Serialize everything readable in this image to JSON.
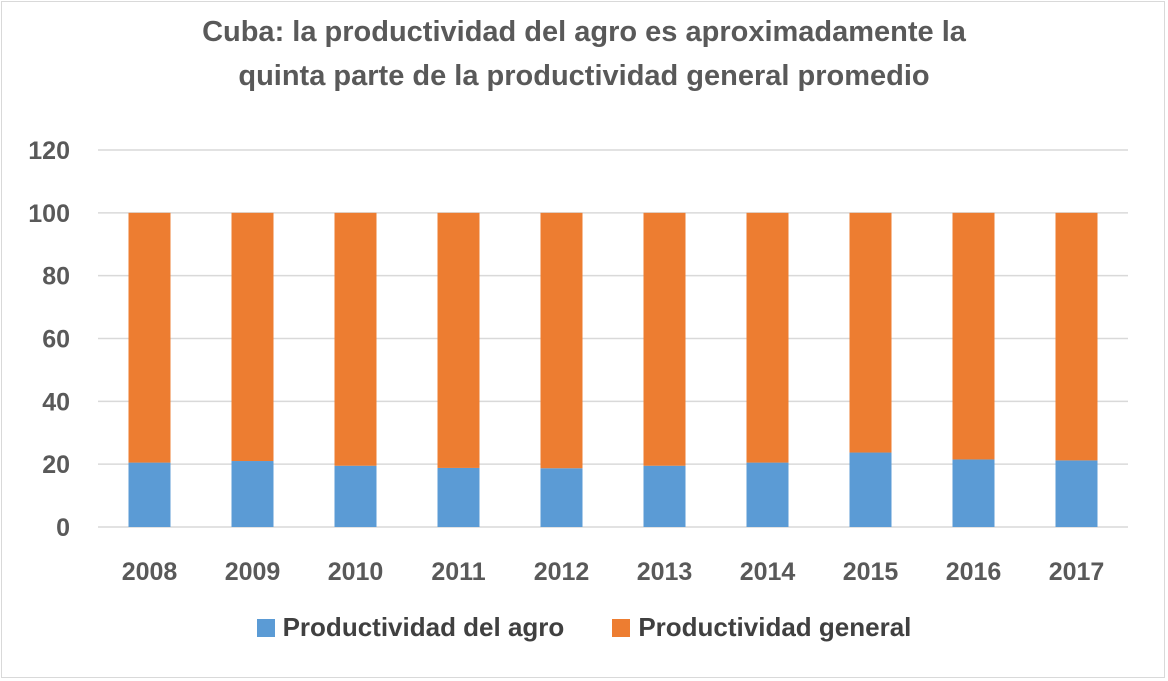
{
  "colors": {
    "agro": "#5b9bd5",
    "general": "#ed7d31",
    "grid": "#d9d9d9",
    "text": "#595959"
  },
  "chart_data": {
    "type": "bar",
    "stacked": true,
    "title_line1": "Cuba: la productividad del agro es aproximadamente la",
    "title_line2": "quinta parte de la productividad general promedio",
    "categories": [
      "2008",
      "2009",
      "2010",
      "2011",
      "2012",
      "2013",
      "2014",
      "2015",
      "2016",
      "2017"
    ],
    "series": [
      {
        "name": "Productividad del agro",
        "values": [
          20.5,
          21,
          19.5,
          18.8,
          18.7,
          19.5,
          20.5,
          23.7,
          21.5,
          21.2
        ]
      },
      {
        "name": "Productividad general",
        "values": [
          79.5,
          79,
          80.5,
          81.2,
          81.3,
          80.5,
          79.5,
          76.3,
          78.5,
          78.8
        ]
      }
    ],
    "yticks": [
      "0",
      "20",
      "40",
      "60",
      "80",
      "100",
      "120"
    ],
    "ylim": [
      0,
      120
    ],
    "grid": true,
    "legend_position": "bottom"
  }
}
